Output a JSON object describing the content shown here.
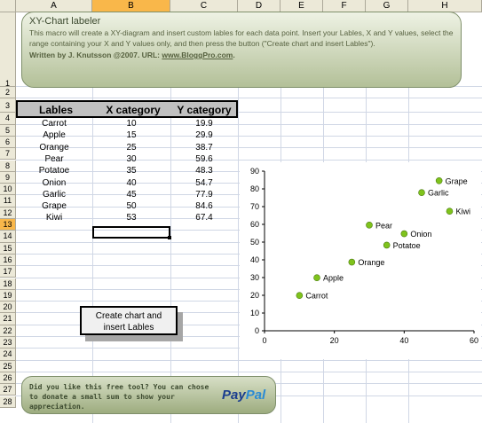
{
  "columns": [
    "A",
    "B",
    "C",
    "D",
    "E",
    "F",
    "G",
    "H"
  ],
  "selected_column": "B",
  "rows": [
    "1",
    "2",
    "3",
    "4",
    "5",
    "6",
    "7",
    "8",
    "9",
    "10",
    "11",
    "12",
    "13",
    "14",
    "15",
    "16",
    "17",
    "18",
    "19",
    "20",
    "21",
    "22",
    "23",
    "24",
    "25",
    "26",
    "27",
    "28"
  ],
  "selected_row": "13",
  "banner": {
    "title": "XY-Chart labeler",
    "description": "This macro will create a XY-diagram and insert custom lables for each data point. Insert your Lables, X and Y values, select the range containing your X and Y values only, and then press the button (\"Create chart and insert Lables\").",
    "author_prefix": "Written by J. Knutsson @2007.  URL: ",
    "author_url": "www.BloggPro.com",
    "author_suffix": "."
  },
  "table": {
    "headers": [
      "Lables",
      "X category",
      "Y category"
    ],
    "rows": [
      [
        "Carrot",
        "10",
        "19.9"
      ],
      [
        "Apple",
        "15",
        "29.9"
      ],
      [
        "Orange",
        "25",
        "38.7"
      ],
      [
        "Pear",
        "30",
        "59.6"
      ],
      [
        "Potatoe",
        "35",
        "48.3"
      ],
      [
        "Onion",
        "40",
        "54.7"
      ],
      [
        "Garlic",
        "45",
        "77.9"
      ],
      [
        "Grape",
        "50",
        "84.6"
      ],
      [
        "Kiwi",
        "53",
        "67.4"
      ]
    ]
  },
  "create_button": {
    "label_line1": "Create chart and",
    "label_line2": "insert Lables"
  },
  "paypal": {
    "text": "Did you like this free tool? You can chose to donate a small sum to show your appreciation.",
    "logo_pay": "Pay",
    "logo_pal": "Pal"
  },
  "chart_data": {
    "type": "scatter",
    "points": [
      {
        "x": 10,
        "y": 19.9,
        "label": "Carrot"
      },
      {
        "x": 15,
        "y": 29.9,
        "label": "Apple"
      },
      {
        "x": 25,
        "y": 38.7,
        "label": "Orange"
      },
      {
        "x": 30,
        "y": 59.6,
        "label": "Pear"
      },
      {
        "x": 35,
        "y": 48.3,
        "label": "Potatoe"
      },
      {
        "x": 40,
        "y": 54.7,
        "label": "Onion"
      },
      {
        "x": 45,
        "y": 77.9,
        "label": "Garlic"
      },
      {
        "x": 50,
        "y": 84.6,
        "label": "Grape"
      },
      {
        "x": 53,
        "y": 67.4,
        "label": "Kiwi"
      }
    ],
    "xlim": [
      0,
      60
    ],
    "ylim": [
      0,
      90
    ],
    "xticks": [
      "0",
      "20",
      "40",
      "60"
    ],
    "yticks": [
      "0",
      "10",
      "20",
      "30",
      "40",
      "50",
      "60",
      "70",
      "80",
      "90"
    ],
    "marker_color": "#7fc31c",
    "grid": false,
    "legend": false
  }
}
